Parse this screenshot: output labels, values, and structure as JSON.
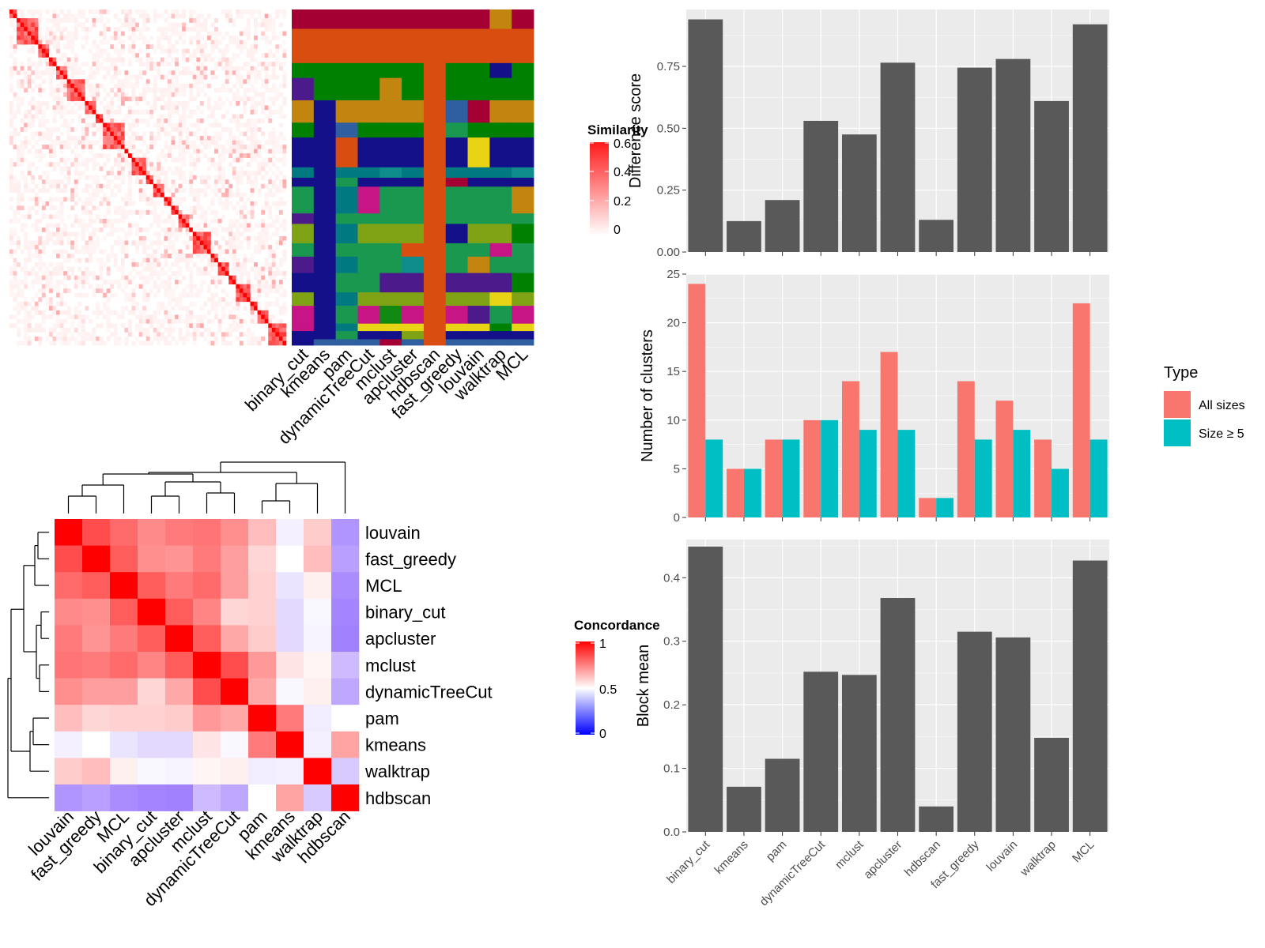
{
  "methods": [
    "binary_cut",
    "kmeans",
    "pam",
    "dynamicTreeCut",
    "mclust",
    "apcluster",
    "hdbscan",
    "fast_greedy",
    "louvain",
    "walktrap",
    "MCL"
  ],
  "colors": {
    "bar_gray": "#595959",
    "panel_bg": "#ebebeb",
    "grid": "#ffffff",
    "all_sizes": "#F8766D",
    "size_ge5": "#00BFC4",
    "sim_red": "#ff0000",
    "conc_blue": "#0000ff"
  },
  "similarity_legend": {
    "title": "Similarity",
    "ticks": [
      "0",
      "0.2",
      "0.4",
      "0.6"
    ]
  },
  "concordance_legend": {
    "title": "Concordance",
    "ticks": [
      "0",
      "0.5",
      "1"
    ]
  },
  "cluster_palette": [
    "#A50034",
    "#D94E10",
    "#008000",
    "#118811",
    "#C2850F",
    "#13108A",
    "#007A80",
    "#1A9850",
    "#7FA315",
    "#4C1A8A",
    "#C71585",
    "#E8D315",
    "#0F8C8C",
    "#2F5FA0"
  ],
  "chart_data": [
    {
      "type": "heatmap",
      "title": "",
      "legend_title": "Similarity",
      "value_range": [
        0,
        0.6
      ],
      "n_terms": 77,
      "description_values": "term-by-term similarity matrix with diagonal blocks"
    },
    {
      "type": "heatmap",
      "title": "",
      "columns": [
        "binary_cut",
        "kmeans",
        "pam",
        "dynamicTreeCut",
        "mclust",
        "apcluster",
        "hdbscan",
        "fast_greedy",
        "louvain",
        "walktrap",
        "MCL"
      ],
      "description_values": "cluster membership of each term per method"
    },
    {
      "type": "heatmap",
      "title": "",
      "legend_title": "Concordance",
      "value_range": [
        0,
        1
      ],
      "order": [
        "louvain",
        "fast_greedy",
        "MCL",
        "binary_cut",
        "apcluster",
        "mclust",
        "dynamicTreeCut",
        "pam",
        "kmeans",
        "walktrap",
        "hdbscan"
      ],
      "matrix": [
        [
          1.0,
          0.85,
          0.79,
          0.73,
          0.76,
          0.77,
          0.72,
          0.63,
          0.46,
          0.6,
          0.22
        ],
        [
          0.85,
          1.0,
          0.82,
          0.72,
          0.71,
          0.76,
          0.69,
          0.58,
          0.5,
          0.63,
          0.25
        ],
        [
          0.79,
          0.82,
          1.0,
          0.82,
          0.76,
          0.79,
          0.69,
          0.59,
          0.43,
          0.53,
          0.2
        ],
        [
          0.73,
          0.72,
          0.82,
          1.0,
          0.82,
          0.74,
          0.58,
          0.59,
          0.4,
          0.48,
          0.18
        ],
        [
          0.76,
          0.71,
          0.76,
          0.82,
          1.0,
          0.82,
          0.67,
          0.6,
          0.4,
          0.47,
          0.17
        ],
        [
          0.77,
          0.76,
          0.79,
          0.74,
          0.82,
          1.0,
          0.85,
          0.7,
          0.55,
          0.52,
          0.32
        ],
        [
          0.72,
          0.69,
          0.69,
          0.58,
          0.67,
          0.85,
          1.0,
          0.67,
          0.48,
          0.53,
          0.27
        ],
        [
          0.63,
          0.58,
          0.59,
          0.59,
          0.6,
          0.7,
          0.67,
          1.0,
          0.76,
          0.45,
          0.5
        ],
        [
          0.46,
          0.5,
          0.43,
          0.4,
          0.4,
          0.55,
          0.48,
          0.76,
          1.0,
          0.46,
          0.68
        ],
        [
          0.6,
          0.63,
          0.53,
          0.48,
          0.47,
          0.52,
          0.53,
          0.45,
          0.46,
          1.0,
          0.36
        ],
        [
          0.22,
          0.25,
          0.2,
          0.18,
          0.17,
          0.32,
          0.27,
          0.5,
          0.68,
          0.36,
          1.0
        ]
      ]
    },
    {
      "type": "bar",
      "categories": [
        "binary_cut",
        "kmeans",
        "pam",
        "dynamicTreeCut",
        "mclust",
        "apcluster",
        "hdbscan",
        "fast_greedy",
        "louvain",
        "walktrap",
        "MCL"
      ],
      "values": [
        0.94,
        0.125,
        0.21,
        0.53,
        0.475,
        0.765,
        0.13,
        0.745,
        0.78,
        0.61,
        0.92
      ],
      "xlabel": "",
      "ylabel": "Difference score",
      "ylim": [
        0,
        0.98
      ],
      "yticks": [
        "0.00",
        "0.25",
        "0.50",
        "0.75"
      ]
    },
    {
      "type": "bar",
      "categories": [
        "binary_cut",
        "kmeans",
        "pam",
        "dynamicTreeCut",
        "mclust",
        "apcluster",
        "hdbscan",
        "fast_greedy",
        "louvain",
        "walktrap",
        "MCL"
      ],
      "series": [
        {
          "name": "All sizes",
          "values": [
            24,
            5,
            8,
            10,
            14,
            17,
            2,
            14,
            12,
            8,
            22
          ]
        },
        {
          "name": "Size ≥ 5",
          "values": [
            8,
            5,
            8,
            10,
            9,
            9,
            2,
            8,
            9,
            5,
            8
          ]
        }
      ],
      "xlabel": "",
      "ylabel": "Number of clusters",
      "ylim": [
        0,
        25
      ],
      "yticks": [
        "0",
        "5",
        "10",
        "15",
        "20",
        "25"
      ],
      "legend_title": "Type",
      "legend_position": "right"
    },
    {
      "type": "bar",
      "categories": [
        "binary_cut",
        "kmeans",
        "pam",
        "dynamicTreeCut",
        "mclust",
        "apcluster",
        "hdbscan",
        "fast_greedy",
        "louvain",
        "walktrap",
        "MCL"
      ],
      "values": [
        0.449,
        0.071,
        0.115,
        0.252,
        0.247,
        0.368,
        0.04,
        0.315,
        0.306,
        0.148,
        0.427
      ],
      "xlabel": "",
      "ylabel": "Block mean",
      "ylim": [
        0,
        0.46
      ],
      "yticks": [
        "0.0",
        "0.1",
        "0.2",
        "0.3",
        "0.4"
      ]
    }
  ]
}
